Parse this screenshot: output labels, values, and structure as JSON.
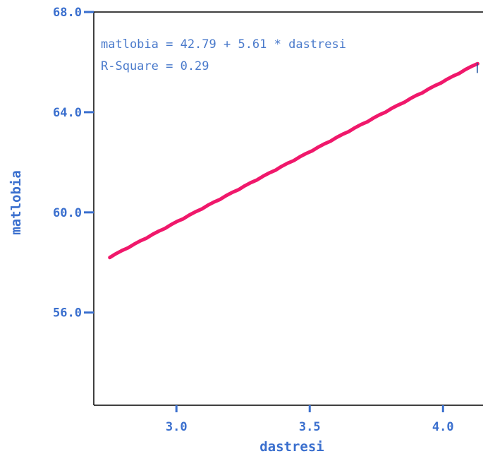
{
  "chart_data": {
    "type": "line",
    "xlabel": "dastresi",
    "ylabel": "matlobia",
    "xlim": [
      2.69,
      4.15
    ],
    "ylim": [
      52.3,
      68.0
    ],
    "x_ticks": [
      3.0,
      3.5,
      4.0
    ],
    "x_tick_labels": [
      "3.0",
      "3.5",
      "4.0"
    ],
    "y_ticks": [
      56.0,
      60.0,
      64.0,
      68.0
    ],
    "y_tick_labels": [
      "56.0",
      "60.0",
      "64.0",
      "68.0"
    ],
    "grid": false,
    "annotations": [
      "matlobia = 42.79 + 5.61 * dastresi",
      "R-Square = 0.29"
    ],
    "series": [
      {
        "color": "#f0186b",
        "x": [
          2.75,
          4.13
        ],
        "y": [
          58.22,
          65.96
        ]
      }
    ]
  }
}
